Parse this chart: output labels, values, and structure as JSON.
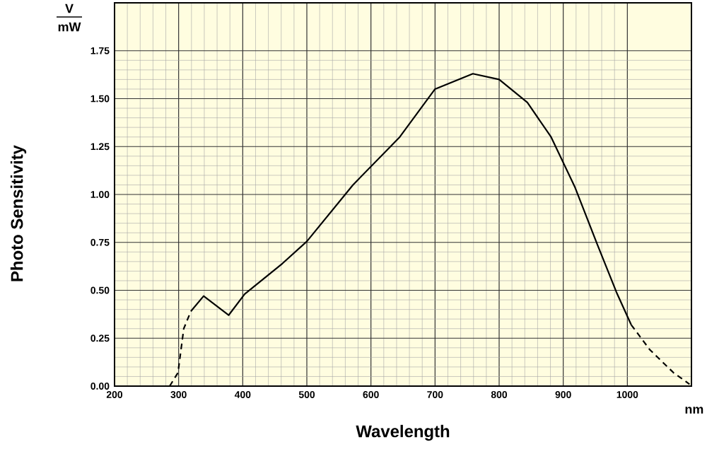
{
  "chart_data": {
    "type": "line",
    "xlabel": "Wavelength",
    "ylabel": "Photo  Sensitivity",
    "annotations": [
      "V",
      "mW",
      "nm"
    ],
    "xlim": [
      200,
      1100
    ],
    "ylim": [
      0,
      2.0
    ],
    "xticks": [
      200,
      300,
      400,
      500,
      600,
      700,
      800,
      900,
      1000
    ],
    "yticks": [
      {
        "value": 0,
        "label": "0.00"
      },
      {
        "value": 0.25,
        "label": "0.25"
      },
      {
        "value": 0.5,
        "label": "0.50"
      },
      {
        "value": 0.75,
        "label": "0.75"
      },
      {
        "value": 1.0,
        "label": "1.00"
      },
      {
        "value": 1.25,
        "label": "1.25"
      },
      {
        "value": 1.5,
        "label": "1.50"
      },
      {
        "value": 1.75,
        "label": "1.75"
      }
    ],
    "grid": true,
    "marker": "none",
    "series": [
      {
        "color": "#000000",
        "line_style": "dashed",
        "x": [
          286,
          299,
          308,
          319
        ],
        "values": [
          0,
          0.07,
          0.3,
          0.39
        ]
      },
      {
        "color": "#000000",
        "line_style": "solid",
        "x": [
          319,
          339,
          378,
          403,
          462,
          500,
          572,
          645,
          700,
          759,
          800,
          844,
          881,
          918,
          953,
          983,
          1006
        ],
        "values": [
          0.39,
          0.47,
          0.37,
          0.48,
          0.64,
          0.755,
          1.05,
          1.3,
          1.55,
          1.63,
          1.6,
          1.48,
          1.3,
          1.04,
          0.74,
          0.49,
          0.32
        ]
      },
      {
        "color": "#000000",
        "line_style": "dashed",
        "x": [
          1006,
          1035,
          1072,
          1097
        ],
        "values": [
          0.32,
          0.19,
          0.07,
          0.01
        ]
      }
    ]
  }
}
